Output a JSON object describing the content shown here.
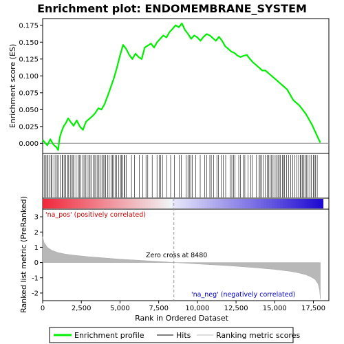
{
  "chart_data": {
    "type": "line",
    "title": "Enrichment plot: ENDOMEMBRANE_SYSTEM",
    "xlabel": "Rank in Ordered Dataset",
    "ylabel_top": "Enrichment score (ES)",
    "ylabel_bottom": "Ranked list metric (PreRanked)",
    "xlim": [
      0,
      18500
    ],
    "x_ticks": [
      0,
      2500,
      5000,
      7500,
      10000,
      12500,
      15000,
      17500
    ],
    "x_tick_labels": [
      "0",
      "2,500",
      "5,000",
      "7,500",
      "10,000",
      "12,500",
      "15,000",
      "17,500"
    ],
    "es_ylim": [
      -0.015,
      0.185
    ],
    "es_ticks": [
      0.0,
      0.025,
      0.05,
      0.075,
      0.1,
      0.125,
      0.15,
      0.175
    ],
    "es_tick_labels": [
      "0.000",
      "0.025",
      "0.050",
      "0.075",
      "0.100",
      "0.125",
      "0.150",
      "0.175"
    ],
    "metric_ylim": [
      -2.5,
      3.5
    ],
    "metric_ticks": [
      -2,
      -1,
      0,
      1,
      2,
      3
    ],
    "metric_tick_labels": [
      "-2",
      "-1",
      "0",
      "1",
      "2",
      "3"
    ],
    "zero_cross": 8480,
    "zero_cross_label": "Zero cross at 8480",
    "pos_label": "'na_pos' (positively correlated)",
    "neg_label": "'na_neg' (negatively correlated)",
    "series": [
      {
        "name": "Enrichment profile",
        "color": "#00ee00",
        "x": [
          0,
          300,
          500,
          700,
          900,
          1000,
          1100,
          1200,
          1350,
          1500,
          1650,
          1800,
          2000,
          2200,
          2400,
          2600,
          2800,
          3000,
          3200,
          3400,
          3600,
          3800,
          4000,
          4200,
          4400,
          4600,
          4800,
          5000,
          5200,
          5400,
          5600,
          5800,
          6000,
          6200,
          6400,
          6600,
          6800,
          7000,
          7200,
          7400,
          7600,
          7800,
          8000,
          8200,
          8400,
          8600,
          8800,
          9000,
          9200,
          9400,
          9600,
          9800,
          10000,
          10200,
          10400,
          10600,
          10800,
          11000,
          11200,
          11400,
          11600,
          11800,
          12000,
          12200,
          12400,
          12600,
          12800,
          13000,
          13200,
          13400,
          13600,
          13800,
          14000,
          14200,
          14400,
          14600,
          14800,
          15000,
          15200,
          15400,
          15600,
          15800,
          16000,
          16200,
          16400,
          16600,
          16800,
          17000,
          17200,
          17400,
          17600,
          17800,
          17950
        ],
        "y": [
          0.005,
          -0.003,
          0.006,
          -0.002,
          -0.006,
          -0.01,
          0.008,
          0.016,
          0.025,
          0.03,
          0.037,
          0.032,
          0.026,
          0.034,
          0.025,
          0.02,
          0.032,
          0.036,
          0.04,
          0.045,
          0.052,
          0.05,
          0.058,
          0.07,
          0.083,
          0.096,
          0.112,
          0.13,
          0.146,
          0.14,
          0.131,
          0.125,
          0.133,
          0.128,
          0.125,
          0.142,
          0.145,
          0.148,
          0.142,
          0.15,
          0.155,
          0.16,
          0.157,
          0.165,
          0.17,
          0.175,
          0.172,
          0.178,
          0.168,
          0.162,
          0.155,
          0.16,
          0.157,
          0.152,
          0.158,
          0.162,
          0.16,
          0.156,
          0.152,
          0.158,
          0.152,
          0.144,
          0.14,
          0.136,
          0.134,
          0.13,
          0.128,
          0.13,
          0.131,
          0.125,
          0.12,
          0.116,
          0.112,
          0.108,
          0.108,
          0.104,
          0.1,
          0.096,
          0.092,
          0.088,
          0.084,
          0.08,
          0.072,
          0.064,
          0.06,
          0.056,
          0.05,
          0.044,
          0.036,
          0.028,
          0.018,
          0.008,
          0.001
        ]
      }
    ],
    "hits_dense_ranges": [
      [
        0,
        5300
      ],
      [
        14000,
        17800
      ]
    ],
    "hits_sparse_range": [
      5300,
      14000
    ],
    "metric_curve": {
      "x": [
        0,
        100,
        300,
        600,
        1000,
        1500,
        2000,
        3000,
        4000,
        5000,
        6000,
        7000,
        8000,
        8480,
        9000,
        10000,
        11000,
        12000,
        13000,
        14000,
        15000,
        16000,
        16500,
        17000,
        17300,
        17600,
        17800,
        17900,
        17950
      ],
      "y": [
        1.7,
        1.3,
        1.0,
        0.8,
        0.65,
        0.55,
        0.48,
        0.38,
        0.3,
        0.22,
        0.16,
        0.1,
        0.04,
        0.0,
        -0.03,
        -0.09,
        -0.15,
        -0.21,
        -0.28,
        -0.36,
        -0.45,
        -0.58,
        -0.67,
        -0.8,
        -0.92,
        -1.1,
        -1.4,
        -1.8,
        -2.4
      ]
    },
    "legend": [
      {
        "label": "Enrichment profile",
        "color": "#00ee00"
      },
      {
        "label": "Hits",
        "color": "#000000"
      },
      {
        "label": "Ranking metric scores",
        "color": "#bbbbbb"
      }
    ]
  }
}
